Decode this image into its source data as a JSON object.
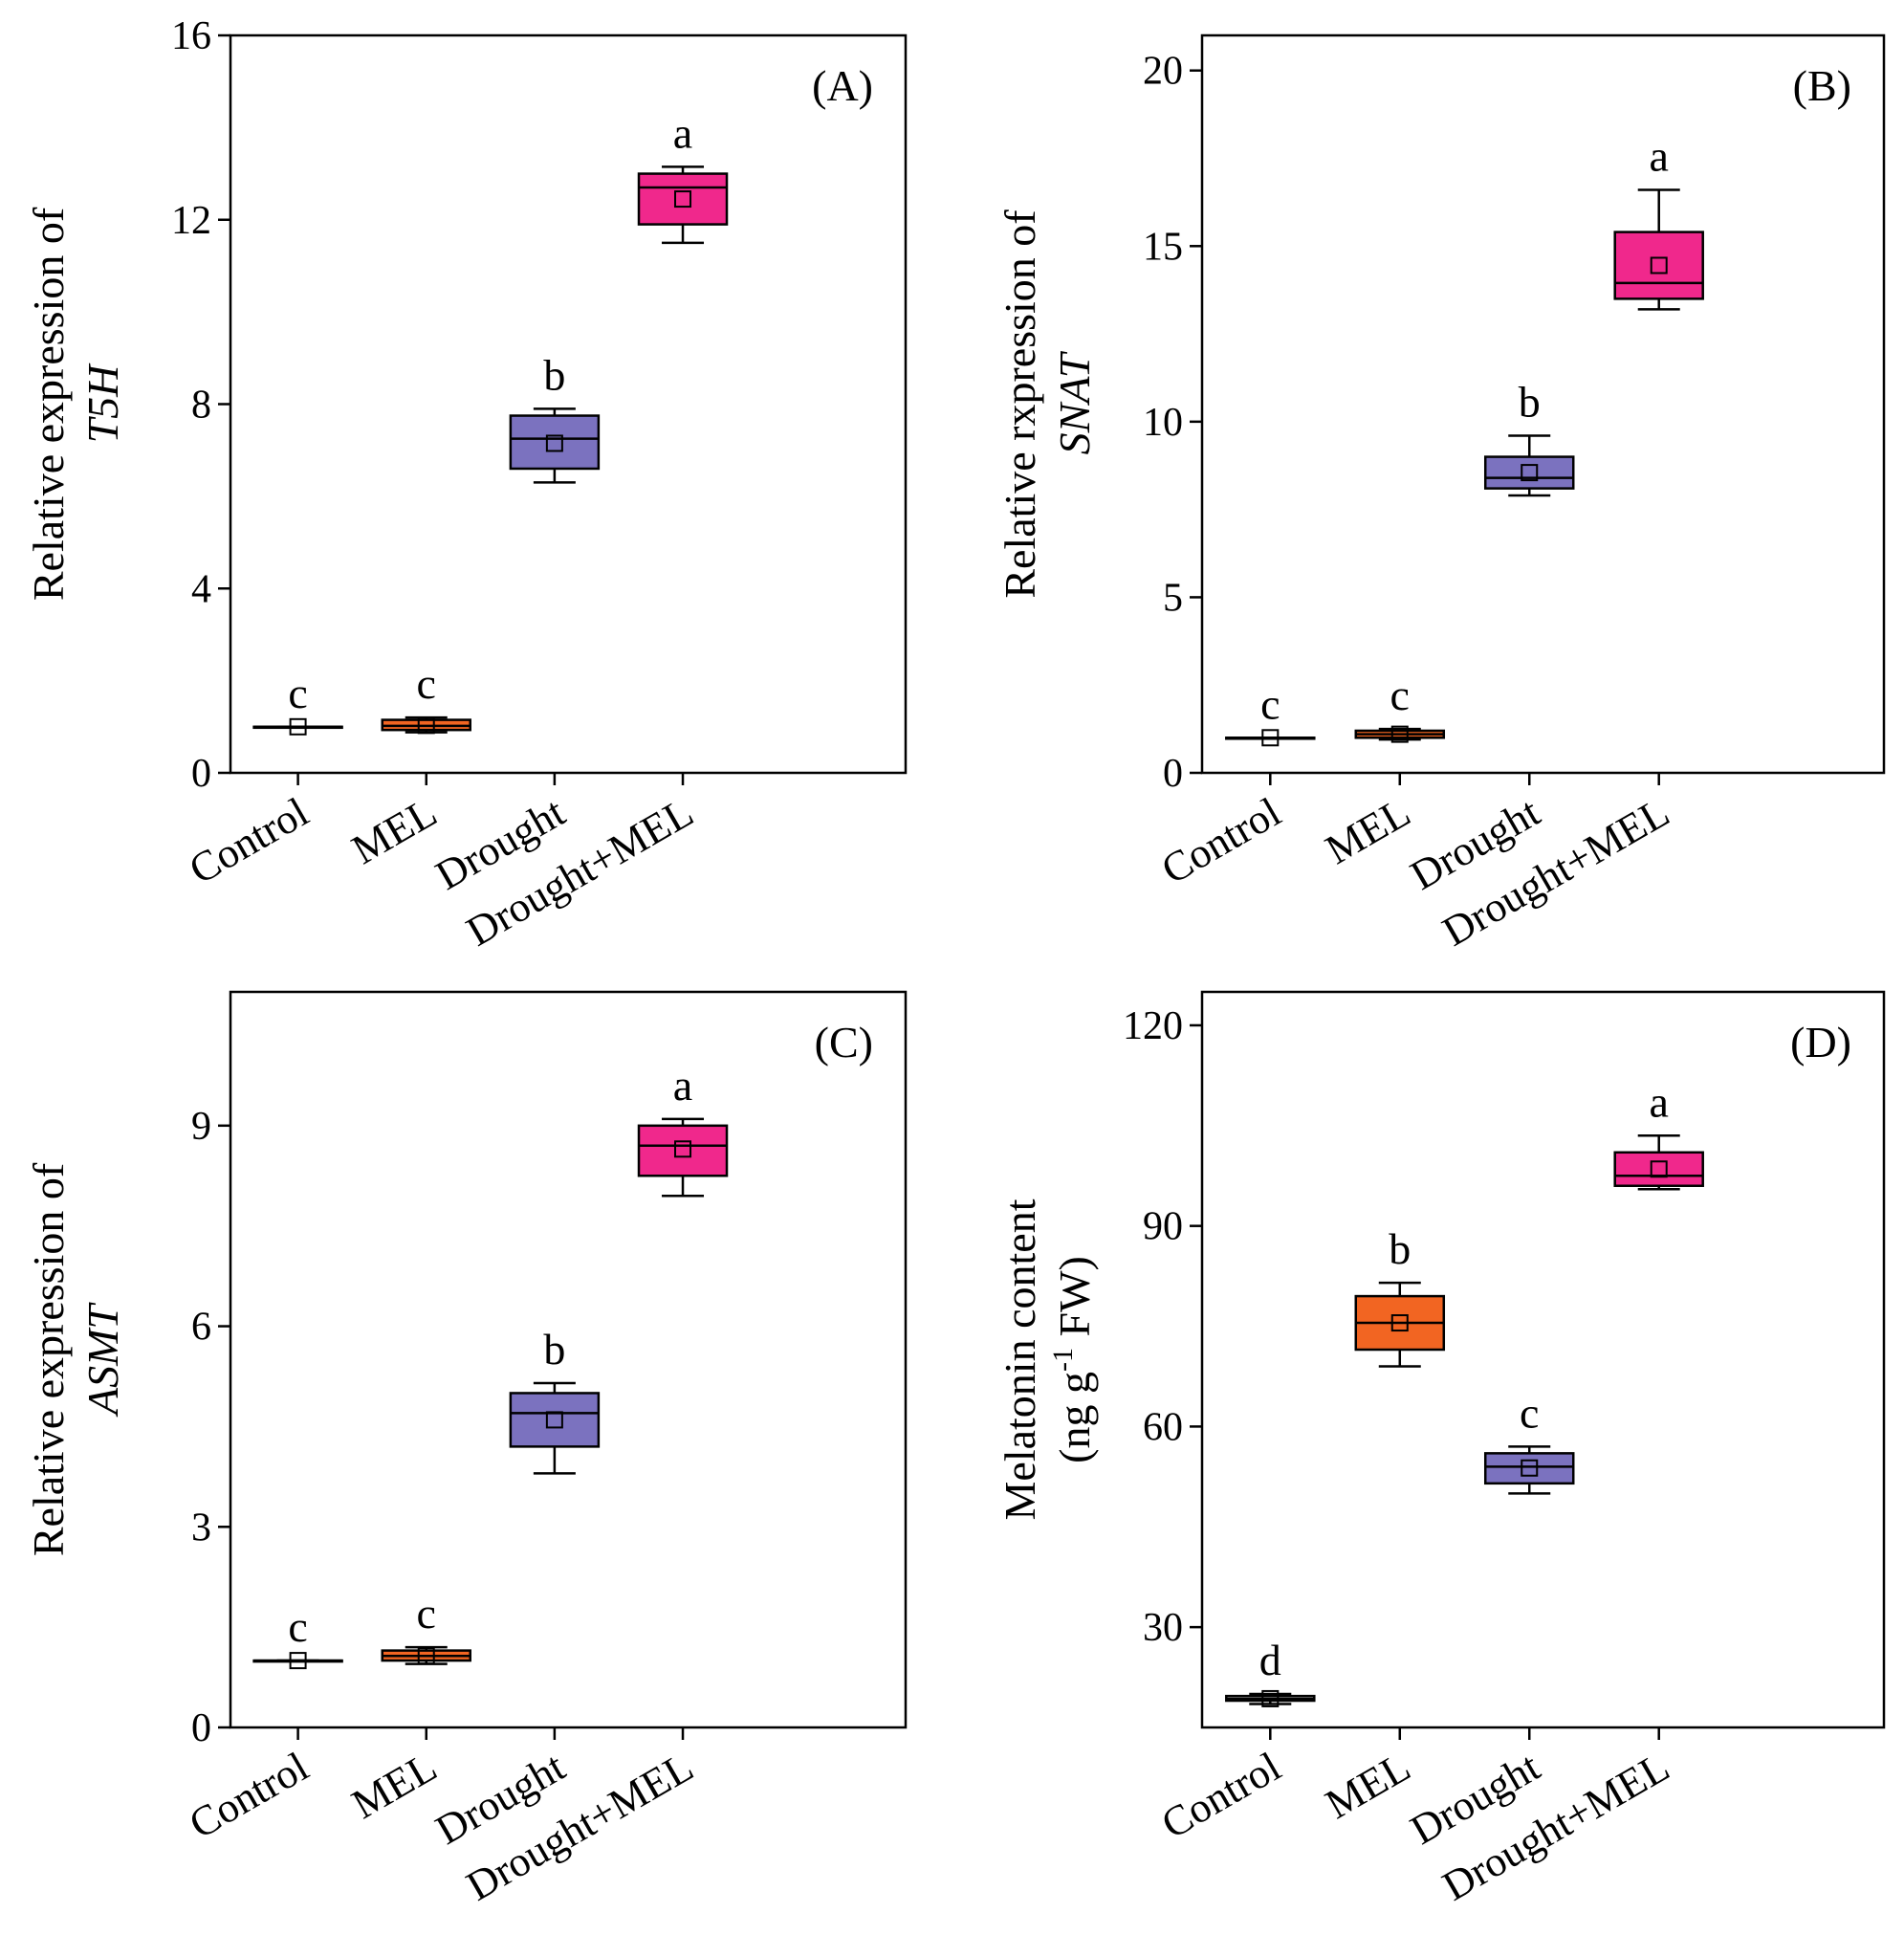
{
  "colors": {
    "Control": "#ffffff",
    "MEL": "#f26522",
    "Drought": "#7b72bf",
    "Drought+MEL": "#f0288c",
    "line": "#000000"
  },
  "chart_data": [
    {
      "id": "A",
      "type": "box",
      "panel_label": "(A)",
      "ylabel_line1": "Relative expression of",
      "ylabel_line2": "T5H",
      "ylim": [
        0,
        16
      ],
      "yticks": [
        0,
        4,
        8,
        12,
        16
      ],
      "categories": [
        "Control",
        "MEL",
        "Drought",
        "Drought+MEL"
      ],
      "boxes": [
        {
          "min": 1.0,
          "q1": 1.0,
          "median": 1.0,
          "q3": 1.0,
          "max": 1.0,
          "mean": 1.0,
          "letter": "c"
        },
        {
          "min": 0.88,
          "q1": 0.93,
          "median": 1.02,
          "q3": 1.15,
          "max": 1.2,
          "mean": 1.03,
          "letter": "c"
        },
        {
          "min": 6.3,
          "q1": 6.6,
          "median": 7.25,
          "q3": 7.75,
          "max": 7.9,
          "mean": 7.15,
          "letter": "b"
        },
        {
          "min": 11.5,
          "q1": 11.9,
          "median": 12.7,
          "q3": 13.0,
          "max": 13.15,
          "mean": 12.45,
          "letter": "a"
        }
      ]
    },
    {
      "id": "B",
      "type": "box",
      "panel_label": "(B)",
      "ylabel_line1": "Relative rxpression of",
      "ylabel_line2": "SNAT",
      "ylim": [
        0,
        21
      ],
      "yticks": [
        0,
        5,
        10,
        15,
        20
      ],
      "categories": [
        "Control",
        "MEL",
        "Drought",
        "Drought+MEL"
      ],
      "boxes": [
        {
          "min": 1.0,
          "q1": 1.0,
          "median": 1.0,
          "q3": 1.0,
          "max": 1.0,
          "mean": 1.0,
          "letter": "c"
        },
        {
          "min": 0.95,
          "q1": 1.0,
          "median": 1.1,
          "q3": 1.2,
          "max": 1.25,
          "mean": 1.1,
          "letter": "c"
        },
        {
          "min": 7.9,
          "q1": 8.1,
          "median": 8.4,
          "q3": 9.0,
          "max": 9.6,
          "mean": 8.55,
          "letter": "b"
        },
        {
          "min": 13.2,
          "q1": 13.5,
          "median": 13.95,
          "q3": 15.4,
          "max": 16.6,
          "mean": 14.45,
          "letter": "a"
        }
      ]
    },
    {
      "id": "C",
      "type": "box",
      "panel_label": "(C)",
      "ylabel_line1": "Relative expression of",
      "ylabel_line2": "ASMT",
      "ylim": [
        0,
        11
      ],
      "yticks": [
        0,
        3,
        6,
        9
      ],
      "categories": [
        "Control",
        "MEL",
        "Drought",
        "Drought+MEL"
      ],
      "boxes": [
        {
          "min": 1.0,
          "q1": 1.0,
          "median": 1.0,
          "q3": 1.0,
          "max": 1.0,
          "mean": 1.0,
          "letter": "c"
        },
        {
          "min": 0.95,
          "q1": 1.0,
          "median": 1.07,
          "q3": 1.15,
          "max": 1.2,
          "mean": 1.07,
          "letter": "c"
        },
        {
          "min": 3.8,
          "q1": 4.2,
          "median": 4.7,
          "q3": 5.0,
          "max": 5.15,
          "mean": 4.6,
          "letter": "b"
        },
        {
          "min": 7.95,
          "q1": 8.25,
          "median": 8.7,
          "q3": 9.0,
          "max": 9.1,
          "mean": 8.65,
          "letter": "a"
        }
      ]
    },
    {
      "id": "D",
      "type": "box",
      "panel_label": "(D)",
      "ylabel_line1": "Melatonin content",
      "ylabel_line2_pre": "(ng g",
      "ylabel_line2_sup": "-1",
      "ylabel_line2_post": " FW)",
      "ylim": [
        15,
        125
      ],
      "yticks": [
        30,
        60,
        90,
        120
      ],
      "categories": [
        "Control",
        "MEL",
        "Drought",
        "Drought+MEL"
      ],
      "boxes": [
        {
          "min": 18.5,
          "q1": 19.0,
          "median": 19.3,
          "q3": 19.7,
          "max": 20.0,
          "mean": 19.3,
          "letter": "d"
        },
        {
          "min": 69,
          "q1": 71.5,
          "median": 75.5,
          "q3": 79.5,
          "max": 81.5,
          "mean": 75.5,
          "letter": "b"
        },
        {
          "min": 50,
          "q1": 51.5,
          "median": 54,
          "q3": 56,
          "max": 57,
          "mean": 53.8,
          "letter": "c"
        },
        {
          "min": 95.5,
          "q1": 96,
          "median": 97.5,
          "q3": 101,
          "max": 103.5,
          "mean": 98.5,
          "letter": "a"
        }
      ]
    }
  ]
}
